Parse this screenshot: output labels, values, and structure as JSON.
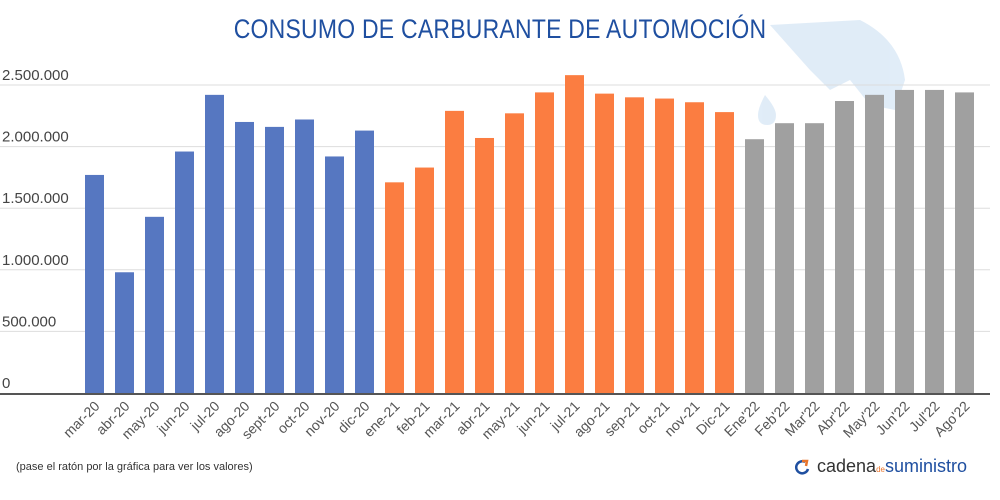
{
  "chart_data": {
    "type": "bar",
    "title": "CONSUMO DE CARBURANTE DE AUTOMOCIÓN",
    "xlabel": "",
    "ylabel": "",
    "ylim": [
      0,
      2500000
    ],
    "yticks": [
      0,
      500000,
      1000000,
      1500000,
      2000000,
      2500000
    ],
    "ytick_labels": [
      "0",
      "500.000",
      "1.000.000",
      "1.500.000",
      "2.000.000",
      "2.500.000"
    ],
    "grid": true,
    "categories": [
      "mar-20",
      "abr-20",
      "may-20",
      "jun-20",
      "jul-20",
      "ago-20",
      "sept-20",
      "oct-20",
      "nov-20",
      "dic-20",
      "ene-21",
      "feb-21",
      "mar-21",
      "abr-21",
      "may-21",
      "jun-21",
      "jul-21",
      "ago-21",
      "sep-21",
      "oct-21",
      "nov-21",
      "Dic-21",
      "Ene'22",
      "Feb'22",
      "Mar'22",
      "Abr'22",
      "May'22",
      "Jun'22",
      "Jul'22",
      "Ago'22"
    ],
    "values": [
      1770000,
      980000,
      1430000,
      1960000,
      2420000,
      2200000,
      2160000,
      2220000,
      1920000,
      2130000,
      1710000,
      1830000,
      2290000,
      2070000,
      2270000,
      2440000,
      2580000,
      2430000,
      2400000,
      2390000,
      2360000,
      2280000,
      2060000,
      2190000,
      2190000,
      2370000,
      2420000,
      2460000,
      2460000,
      2440000
    ],
    "bar_colors": [
      "#5677c1",
      "#5677c1",
      "#5677c1",
      "#5677c1",
      "#5677c1",
      "#5677c1",
      "#5677c1",
      "#5677c1",
      "#5677c1",
      "#5677c1",
      "#fb7d41",
      "#fb7d41",
      "#fb7d41",
      "#fb7d41",
      "#fb7d41",
      "#fb7d41",
      "#fb7d41",
      "#fb7d41",
      "#fb7d41",
      "#fb7d41",
      "#fb7d41",
      "#fb7d41",
      "#a0a0a0",
      "#a0a0a0",
      "#a0a0a0",
      "#a0a0a0",
      "#a0a0a0",
      "#a0a0a0",
      "#a0a0a0",
      "#a0a0a0"
    ]
  },
  "note": "(pase el ratón por la gráfica para ver los valores)",
  "logo": {
    "part1": "cadena",
    "part2": "de",
    "part3": "suministro"
  },
  "colors": {
    "title": "#1f4fa0",
    "grid": "#dddddd",
    "axis": "#555555"
  }
}
